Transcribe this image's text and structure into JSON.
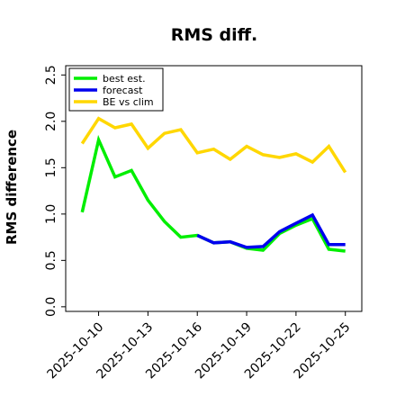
{
  "chart_data": {
    "type": "line",
    "title": "RMS diff.",
    "xlabel": "",
    "ylabel": "RMS difference",
    "ylim": [
      -0.05,
      2.6
    ],
    "xlim": [
      "2025-10-08",
      "2025-10-26"
    ],
    "yticks": [
      "0.0",
      "0.5",
      "1.0",
      "1.5",
      "2.0",
      "2.5"
    ],
    "xticks": [
      {
        "label": "2025-10-10",
        "color": "#000000"
      },
      {
        "label": "2025-10-13",
        "color": "#000000"
      },
      {
        "label": "2025-10-16",
        "color": "#2a8a2a"
      },
      {
        "label": "2025-10-19",
        "color": "#000000"
      },
      {
        "label": "2025-10-22",
        "color": "#000000"
      },
      {
        "label": "2025-10-25",
        "color": "#000000"
      }
    ],
    "grid": false,
    "legend_position": "top-left",
    "series": [
      {
        "name": "best est.",
        "color": "#00ee00",
        "x": [
          "2025-10-09",
          "2025-10-10",
          "2025-10-11",
          "2025-10-12",
          "2025-10-13",
          "2025-10-14",
          "2025-10-15",
          "2025-10-16",
          "2025-10-17",
          "2025-10-18",
          "2025-10-19",
          "2025-10-20",
          "2025-10-21",
          "2025-10-22",
          "2025-10-23",
          "2025-10-24",
          "2025-10-25"
        ],
        "values": [
          1.02,
          1.8,
          1.4,
          1.47,
          1.15,
          0.92,
          0.75,
          0.77,
          0.69,
          0.7,
          0.63,
          0.61,
          0.79,
          0.88,
          0.95,
          0.62,
          0.6
        ]
      },
      {
        "name": "forecast",
        "color": "#0000ee",
        "x": [
          "2025-10-16",
          "2025-10-17",
          "2025-10-18",
          "2025-10-19",
          "2025-10-20",
          "2025-10-21",
          "2025-10-22",
          "2025-10-23",
          "2025-10-24",
          "2025-10-25"
        ],
        "values": [
          0.77,
          0.69,
          0.7,
          0.64,
          0.65,
          0.81,
          0.9,
          0.99,
          0.67,
          0.67
        ]
      },
      {
        "name": "BE vs clim",
        "color": "#ffd700",
        "x": [
          "2025-10-09",
          "2025-10-10",
          "2025-10-11",
          "2025-10-12",
          "2025-10-13",
          "2025-10-14",
          "2025-10-15",
          "2025-10-16",
          "2025-10-17",
          "2025-10-18",
          "2025-10-19",
          "2025-10-20",
          "2025-10-21",
          "2025-10-22",
          "2025-10-23",
          "2025-10-24",
          "2025-10-25"
        ],
        "values": [
          1.76,
          2.03,
          1.93,
          1.97,
          1.71,
          1.87,
          1.91,
          1.66,
          1.7,
          1.59,
          1.73,
          1.64,
          1.61,
          1.65,
          1.56,
          1.73,
          1.45
        ]
      }
    ]
  }
}
